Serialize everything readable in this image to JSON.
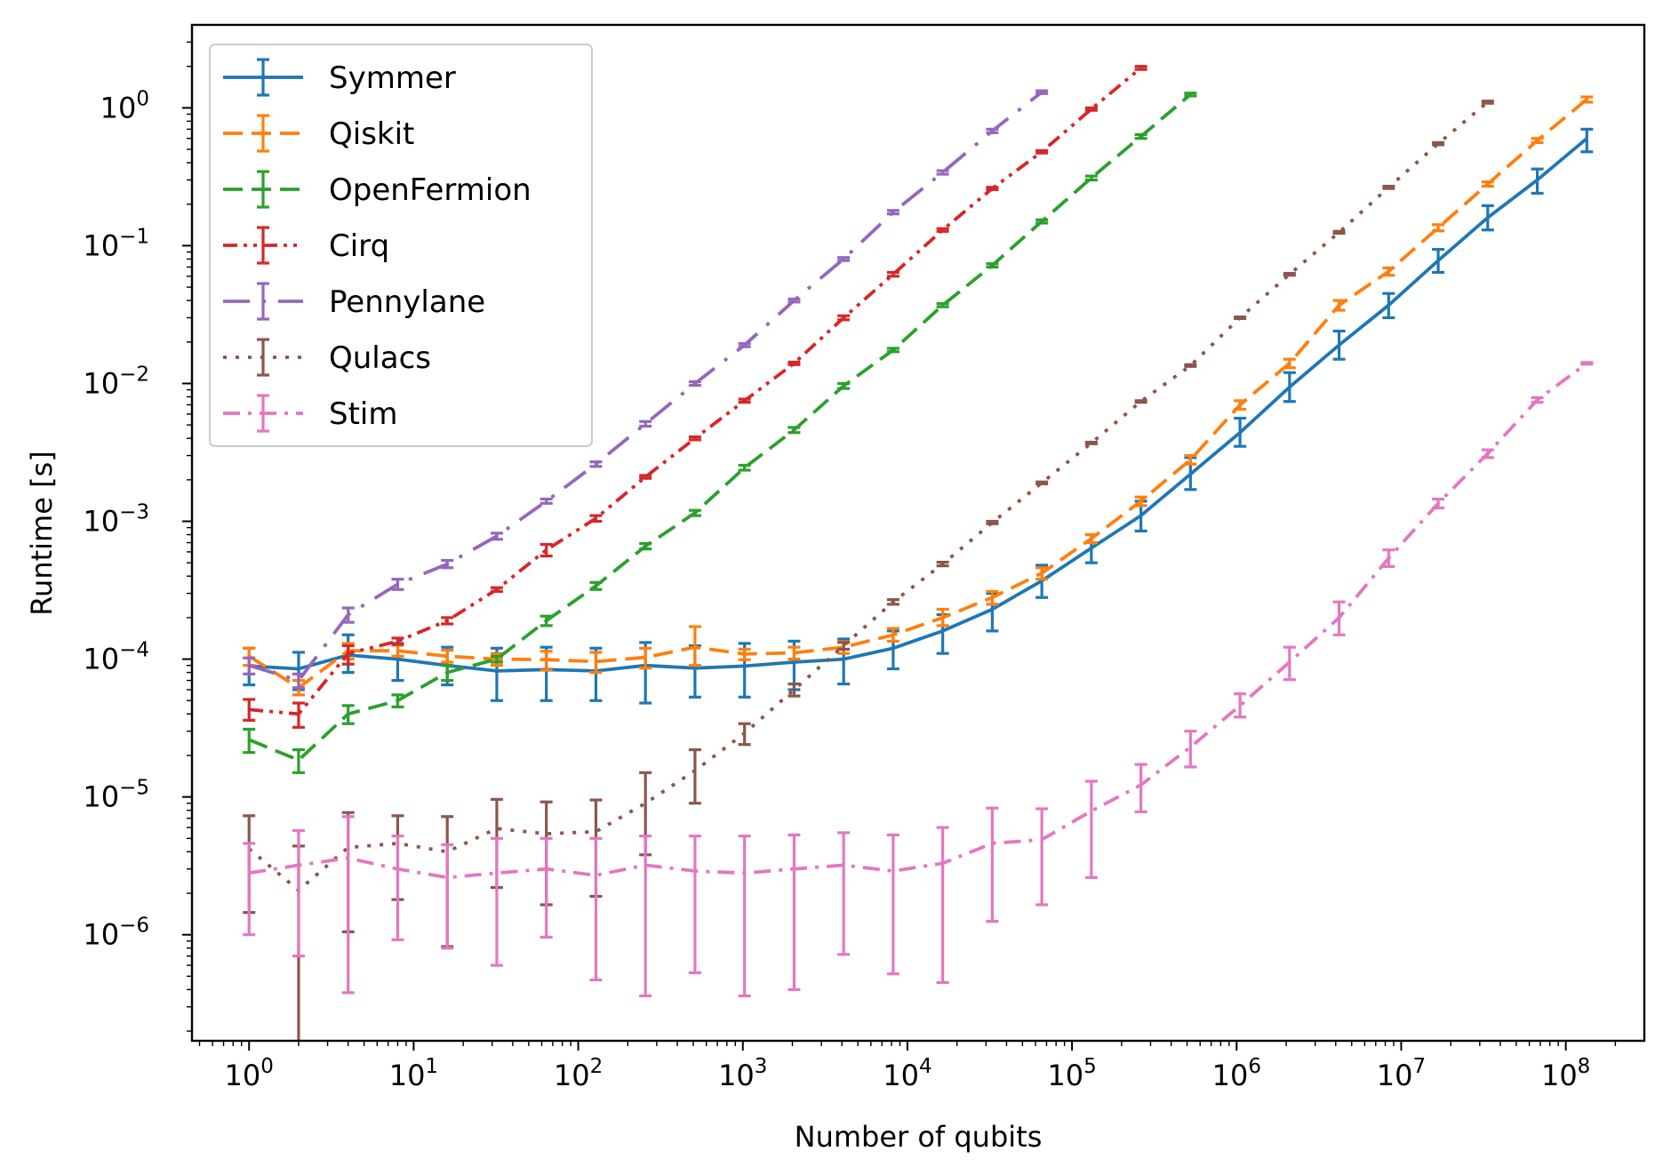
{
  "chart_data": {
    "type": "line",
    "title": "",
    "xlabel": "Number of qubits",
    "ylabel": "Runtime [s]",
    "xscale": "log",
    "yscale": "log",
    "xlim": [
      0.45,
      300000000
    ],
    "ylim": [
      1.7e-07,
      4.0
    ],
    "grid": false,
    "legend_position": "top-left",
    "x_ticks": [
      {
        "base": "10",
        "exp": "0"
      },
      {
        "base": "10",
        "exp": "1"
      },
      {
        "base": "10",
        "exp": "2"
      },
      {
        "base": "10",
        "exp": "3"
      },
      {
        "base": "10",
        "exp": "4"
      },
      {
        "base": "10",
        "exp": "5"
      },
      {
        "base": "10",
        "exp": "6"
      },
      {
        "base": "10",
        "exp": "7"
      },
      {
        "base": "10",
        "exp": "8"
      }
    ],
    "y_ticks": [
      {
        "base": "10",
        "exp": "−6"
      },
      {
        "base": "10",
        "exp": "−5"
      },
      {
        "base": "10",
        "exp": "−4"
      },
      {
        "base": "10",
        "exp": "−3"
      },
      {
        "base": "10",
        "exp": "−2"
      },
      {
        "base": "10",
        "exp": "−1"
      },
      {
        "base": "10",
        "exp": "0"
      }
    ],
    "x_exponents": [
      0,
      1,
      2,
      3,
      4,
      5,
      6,
      7,
      8,
      9,
      10,
      11,
      12,
      13,
      14,
      15,
      16,
      17,
      18,
      19,
      20,
      21,
      22,
      23,
      24,
      25,
      26,
      27
    ],
    "x_note": "x values are 2^k for k in x_exponents",
    "series": [
      {
        "name": "Symmer",
        "color": "#1f77b4",
        "dash": "solid",
        "y": [
          8.9e-05,
          8.5e-05,
          0.000107,
          0.0001,
          9e-05,
          8.2e-05,
          8.4e-05,
          8.2e-05,
          9e-05,
          8.6e-05,
          8.9e-05,
          9.5e-05,
          0.0001,
          0.00012,
          0.00016,
          0.00023,
          0.00037,
          0.00064,
          0.0011,
          0.0022,
          0.0044,
          0.0094,
          0.019,
          0.037,
          0.078,
          0.16,
          0.3,
          0.6
        ],
        "err_lo": [
          6.5e-05,
          6e-05,
          8e-05,
          7e-05,
          6.5e-05,
          5e-05,
          5e-05,
          5e-05,
          4.8e-05,
          5.3e-05,
          5.3e-05,
          6e-05,
          6.6e-05,
          8.5e-05,
          0.00011,
          0.00016,
          0.00028,
          0.0005,
          0.00085,
          0.0017,
          0.0035,
          0.0074,
          0.015,
          0.03,
          0.064,
          0.13,
          0.24,
          0.48
        ],
        "err_hi": [
          0.00012,
          0.000112,
          0.00015,
          0.00013,
          0.000122,
          0.00012,
          0.000122,
          0.00012,
          0.000132,
          0.000125,
          0.00013,
          0.000135,
          0.00014,
          0.00016,
          0.00021,
          0.0003,
          0.00048,
          0.0008,
          0.0014,
          0.0029,
          0.0056,
          0.012,
          0.024,
          0.045,
          0.094,
          0.195,
          0.36,
          0.7
        ]
      },
      {
        "name": "Qiskit",
        "color": "#ff7f0e",
        "dash": "dashed",
        "y": [
          0.000105,
          6.2e-05,
          0.000115,
          0.000115,
          0.000105,
          0.0001,
          9.9e-05,
          9.6e-05,
          0.000103,
          0.000122,
          0.000109,
          0.000111,
          0.000122,
          0.00015,
          0.0002,
          0.00028,
          0.00042,
          0.00075,
          0.0014,
          0.0028,
          0.007,
          0.014,
          0.037,
          0.065,
          0.135,
          0.28,
          0.58,
          1.15
        ],
        "err_lo": [
          9e-05,
          5.5e-05,
          0.0001,
          0.000105,
          9.5e-05,
          9e-05,
          8.3e-05,
          8e-05,
          8.6e-05,
          9e-05,
          9.9e-05,
          0.0001,
          0.00011,
          0.000135,
          0.000175,
          0.00025,
          0.00038,
          0.0007,
          0.0013,
          0.0026,
          0.0065,
          0.013,
          0.034,
          0.061,
          0.128,
          0.27,
          0.56,
          1.1
        ],
        "err_hi": [
          0.00012,
          7e-05,
          0.00013,
          0.000126,
          0.000116,
          0.00011,
          0.000114,
          0.000112,
          0.00012,
          0.000172,
          0.000118,
          0.000122,
          0.000134,
          0.000167,
          0.00023,
          0.00031,
          0.00046,
          0.0008,
          0.0015,
          0.003,
          0.0075,
          0.015,
          0.04,
          0.069,
          0.142,
          0.29,
          0.6,
          1.2
        ]
      },
      {
        "name": "OpenFermion",
        "color": "#2ca02c",
        "dash": "dashed",
        "y": [
          2.6e-05,
          1.85e-05,
          4e-05,
          5e-05,
          8e-05,
          0.0001,
          0.00019,
          0.00034,
          0.00066,
          0.00115,
          0.00245,
          0.0046,
          0.0096,
          0.0175,
          0.037,
          0.072,
          0.15,
          0.31,
          0.62,
          1.25
        ],
        "err_lo": [
          2.1e-05,
          1.5e-05,
          3.4e-05,
          4.5e-05,
          7e-05,
          9.5e-05,
          0.000175,
          0.00032,
          0.00063,
          0.0011,
          0.00235,
          0.0044,
          0.0092,
          0.017,
          0.036,
          0.07,
          0.146,
          0.3,
          0.6,
          1.22
        ],
        "err_hi": [
          3.1e-05,
          2.2e-05,
          4.6e-05,
          5.5e-05,
          9e-05,
          0.000105,
          0.000205,
          0.00036,
          0.00069,
          0.0012,
          0.00255,
          0.0048,
          0.01,
          0.018,
          0.038,
          0.074,
          0.154,
          0.32,
          0.64,
          1.28
        ]
      },
      {
        "name": "Cirq",
        "color": "#d62728",
        "dash": "dashdotdot",
        "y": [
          4.3e-05,
          4e-05,
          0.00011,
          0.000135,
          0.00019,
          0.00032,
          0.00062,
          0.00105,
          0.0021,
          0.004,
          0.0075,
          0.014,
          0.03,
          0.062,
          0.13,
          0.26,
          0.48,
          0.98,
          1.95
        ],
        "err_lo": [
          3.6e-05,
          3.2e-05,
          9.2e-05,
          0.000128,
          0.00018,
          0.00031,
          0.00056,
          0.001,
          0.00205,
          0.0039,
          0.0073,
          0.0137,
          0.029,
          0.06,
          0.127,
          0.255,
          0.47,
          0.96,
          1.9
        ],
        "err_hi": [
          5.1e-05,
          4.8e-05,
          0.000125,
          0.000142,
          0.0002,
          0.00033,
          0.00068,
          0.0011,
          0.00215,
          0.0041,
          0.0077,
          0.0143,
          0.031,
          0.064,
          0.133,
          0.265,
          0.49,
          1.0,
          2.0
        ]
      },
      {
        "name": "Pennylane",
        "color": "#9467bd",
        "dash": "longdashdot",
        "y": [
          9e-05,
          7e-05,
          0.00021,
          0.00035,
          0.00049,
          0.00078,
          0.0014,
          0.0026,
          0.0051,
          0.01,
          0.019,
          0.04,
          0.08,
          0.175,
          0.34,
          0.68,
          1.3
        ],
        "err_lo": [
          7.8e-05,
          6.2e-05,
          0.000185,
          0.00032,
          0.00046,
          0.00074,
          0.00135,
          0.0025,
          0.0049,
          0.0097,
          0.0185,
          0.039,
          0.078,
          0.17,
          0.33,
          0.66,
          1.27
        ],
        "err_hi": [
          0.000102,
          7.8e-05,
          0.000235,
          0.00038,
          0.00052,
          0.00082,
          0.00145,
          0.0027,
          0.0053,
          0.0103,
          0.0195,
          0.041,
          0.082,
          0.18,
          0.35,
          0.7,
          1.33
        ]
      },
      {
        "name": "Qulacs",
        "color": "#8c564b",
        "dash": "dotted",
        "y": [
          4.2e-06,
          2.1e-06,
          4.3e-06,
          4.6e-06,
          4e-06,
          5.9e-06,
          5.4e-06,
          5.6e-06,
          9e-06,
          1.55e-05,
          2.9e-05,
          6e-05,
          0.000125,
          0.00026,
          0.00049,
          0.00098,
          0.0019,
          0.0037,
          0.0074,
          0.0135,
          0.03,
          0.062,
          0.125,
          0.265,
          0.55,
          1.1
        ],
        "err_lo": [
          1.45e-06,
          1.5e-07,
          1.05e-06,
          1.8e-06,
          8.2e-07,
          2.2e-06,
          1.65e-06,
          1.9e-06,
          3.8e-06,
          9e-06,
          2.4e-05,
          5.4e-05,
          0.000118,
          0.00025,
          0.000475,
          0.00096,
          0.00187,
          0.00365,
          0.0073,
          0.0133,
          0.0296,
          0.061,
          0.123,
          0.26,
          0.54,
          1.08
        ],
        "err_hi": [
          7.3e-06,
          4.4e-06,
          7.7e-06,
          7.3e-06,
          7.2e-06,
          9.6e-06,
          9.2e-06,
          9.5e-06,
          1.5e-05,
          2.2e-05,
          3.4e-05,
          6.6e-05,
          0.000132,
          0.00027,
          0.000505,
          0.001,
          0.00193,
          0.00375,
          0.0075,
          0.0137,
          0.0304,
          0.063,
          0.127,
          0.27,
          0.56,
          1.12
        ]
      },
      {
        "name": "Stim",
        "color": "#e377c2",
        "dash": "dashdot",
        "y": [
          2.8e-06,
          3.2e-06,
          3.6e-06,
          3e-06,
          2.6e-06,
          2.8e-06,
          3e-06,
          2.7e-06,
          3.2e-06,
          2.9e-06,
          2.8e-06,
          3e-06,
          3.2e-06,
          2.9e-06,
          3.3e-06,
          4.6e-06,
          4.9e-06,
          7.9e-06,
          1.22e-05,
          2.3e-05,
          4.6e-05,
          9.5e-05,
          0.0002,
          0.00054,
          0.00135,
          0.0031,
          0.0076,
          0.014
        ],
        "err_lo": [
          1e-06,
          7e-07,
          3.8e-07,
          9.2e-07,
          8e-07,
          6e-07,
          9.6e-07,
          4.7e-07,
          3.6e-07,
          5.3e-07,
          3.6e-07,
          4e-07,
          7.2e-07,
          5.2e-07,
          4.5e-07,
          1.25e-06,
          1.65e-06,
          2.6e-06,
          7.8e-06,
          1.65e-05,
          3.8e-05,
          7.1e-05,
          0.00015,
          0.00047,
          0.00125,
          0.0029,
          0.0073,
          0.0138
        ],
        "err_hi": [
          4.6e-06,
          5.7e-06,
          7.2e-06,
          5.2e-06,
          4.5e-06,
          5e-06,
          5e-06,
          5e-06,
          5.2e-06,
          5.2e-06,
          5.2e-06,
          5.3e-06,
          5.5e-06,
          5.3e-06,
          6e-06,
          8.3e-06,
          8.2e-06,
          1.3e-05,
          1.72e-05,
          3e-05,
          5.6e-05,
          0.000122,
          0.00026,
          0.00062,
          0.00145,
          0.0033,
          0.0079,
          0.0142
        ]
      }
    ]
  }
}
